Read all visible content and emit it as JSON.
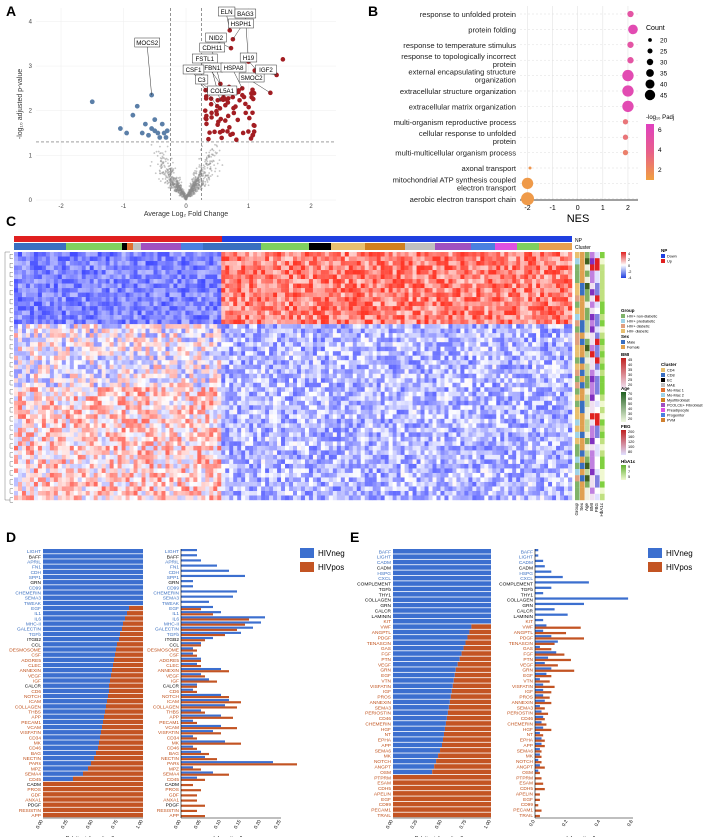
{
  "panels": {
    "A": "A",
    "B": "B",
    "C": "C",
    "D": "D",
    "E": "E"
  },
  "panel_a": {
    "ylabel": "-log₁₀ adjusted p-value",
    "xlabel": "Average Log₂ Fold Change",
    "xticks": [
      "-2",
      "-1",
      "0",
      "1",
      "2"
    ],
    "yticks": [
      "0",
      "1",
      "2",
      "3",
      "4"
    ],
    "gene_labels": [
      "ELN",
      "BAG3",
      "HSPH1",
      "MOCS2",
      "NID2",
      "CDH11",
      "FSTL1",
      "FBN1",
      "HSPA8",
      "H19",
      "CSF1",
      "C3",
      "COL5A1",
      "SMOC2",
      "IGF2"
    ],
    "colors": {
      "up": "#a31d22",
      "down": "#5b7fa8",
      "ns": "#8c8c8c"
    }
  },
  "panel_b": {
    "xlabel": "NES",
    "xticks": [
      "-2",
      "-1",
      "0",
      "1",
      "2"
    ],
    "terms": [
      {
        "label": "response to unfolded protein",
        "nes": 2.1,
        "count": 25,
        "padj": 5.0
      },
      {
        "label": "protein folding",
        "nes": 2.2,
        "count": 35,
        "padj": 5.5
      },
      {
        "label": "response to temperature stimulus",
        "nes": 2.1,
        "count": 25,
        "padj": 5.0
      },
      {
        "label": "response to topologically incorrect protein",
        "nes": 2.1,
        "count": 25,
        "padj": 5.0
      },
      {
        "label": "external encapsulating structure organization",
        "nes": 2.0,
        "count": 40,
        "padj": 5.5
      },
      {
        "label": "extracellular structure organization",
        "nes": 2.0,
        "count": 40,
        "padj": 5.5
      },
      {
        "label": "extracellular matrix organization",
        "nes": 2.0,
        "count": 40,
        "padj": 5.5
      },
      {
        "label": "multi-organism reproductive process",
        "nes": 1.9,
        "count": 22,
        "padj": 3.5
      },
      {
        "label": "cellular response to unfolded protein",
        "nes": 1.9,
        "count": 22,
        "padj": 3.5
      },
      {
        "label": "multi-multicellular organism process",
        "nes": 1.9,
        "count": 22,
        "padj": 3.0
      },
      {
        "label": "axonal transport",
        "nes": -1.9,
        "count": 15,
        "padj": 2.0
      },
      {
        "label": "mitochondrial ATP synthesis coupled electron transport",
        "nes": -2.0,
        "count": 40,
        "padj": 1.8
      },
      {
        "label": "aerobic electron transport chain",
        "nes": -2.0,
        "count": 45,
        "padj": 1.8
      }
    ],
    "legend": {
      "count_title": "Count",
      "counts": [
        "20",
        "25",
        "30",
        "35",
        "40",
        "45"
      ],
      "padj_title": "-log₁₀ Padj",
      "padj_ticks": [
        "6",
        "4",
        "2"
      ]
    }
  },
  "panel_c": {
    "track_labels": {
      "np": "NP",
      "cluster": "Cluster"
    },
    "bottom_labels": [
      "Group",
      "Sex",
      "Age",
      "BMI",
      "FBG",
      "HbA1c"
    ],
    "legends": {
      "np": {
        "title": "NP",
        "items": [
          {
            "label": "Down",
            "color": "#1f3fe0"
          },
          {
            "label": "Up",
            "color": "#e02020"
          }
        ]
      },
      "scale": {
        "title": "",
        "ticks": [
          "4",
          "2",
          "0",
          "-2",
          "-4"
        ]
      },
      "group": {
        "title": "Group",
        "items": [
          {
            "label": "HIV+ non-diabetic",
            "color": "#7fb36b"
          },
          {
            "label": "HIV+ prediabetic",
            "color": "#9fd3e8"
          },
          {
            "label": "HIV+ diabetic",
            "color": "#e0a080"
          },
          {
            "label": "HIV- diabetic",
            "color": "#e8c070"
          }
        ]
      },
      "sex": {
        "title": "Sex",
        "items": [
          {
            "label": "Male",
            "color": "#3a6fc0"
          },
          {
            "label": "Female",
            "color": "#e0a050"
          }
        ]
      },
      "bmi": {
        "title": "BMI",
        "ticks": [
          "45",
          "40",
          "35",
          "30",
          "25",
          "20"
        ]
      },
      "age": {
        "title": "Age",
        "ticks": [
          "70",
          "60",
          "50",
          "40",
          "30",
          "20"
        ]
      },
      "fbg": {
        "title": "FBG",
        "ticks": [
          "200",
          "160",
          "120",
          "100",
          "80"
        ]
      },
      "hba1c": {
        "title": "HbA1c",
        "ticks": [
          "9",
          "7",
          "5"
        ]
      },
      "cluster": {
        "title": "Cluster",
        "items": [
          {
            "label": "CD4",
            "color": "#e8c070"
          },
          {
            "label": "CD8",
            "color": "#3a6fc0"
          },
          {
            "label": "EC",
            "color": "#000000"
          },
          {
            "label": "MAE",
            "color": "#c0c0c0"
          },
          {
            "label": "Mo-Mac 1",
            "color": "#e07030"
          },
          {
            "label": "Mo-Mac 2",
            "color": "#9fd3e8"
          },
          {
            "label": "Myofibroblast",
            "color": "#d08020"
          },
          {
            "label": "PCOLCE+ Fibroblast",
            "color": "#a050c0"
          },
          {
            "label": "Preadipocyte",
            "color": "#e050e0"
          },
          {
            "label": "Progenitor",
            "color": "#4a80e0"
          },
          {
            "label": "PVM",
            "color": "#d08030"
          }
        ]
      }
    }
  },
  "panel_d": {
    "xlabel_left": "Relative information flow",
    "xlabel_right": "Information flow",
    "xticks_left": [
      "0.00",
      "0.25",
      "0.50",
      "0.75",
      "1.00"
    ],
    "xticks_right": [
      "0.00",
      "0.05",
      "0.10",
      "0.15",
      "0.20",
      "0.25"
    ],
    "pathways": [
      "LIGHT",
      "BAFF",
      "APRIL",
      "FN1",
      "CDH",
      "SPP1",
      "GRN",
      "CD99",
      "CHEMERIN",
      "SEMA3",
      "TWEAK",
      "EGF",
      "IL1",
      "IL6",
      "MHC-II",
      "GALECTIN",
      "TGFb",
      "ITGB2",
      "CCL",
      "DESMOSOME",
      "CSF",
      "ADGRE5",
      "CLEC",
      "ANNEXIN",
      "VEGF",
      "IGF",
      "CALCR",
      "CD6",
      "NOTCH",
      "ICAM",
      "COLLAGEN",
      "THBS",
      "APP",
      "PECAM1",
      "VCAM",
      "VISFATIN",
      "CD34",
      "MK",
      "CD46",
      "BAG",
      "NECTIN",
      "PARs",
      "MPZ",
      "SEMA4",
      "CD45",
      "CADM",
      "PROS",
      "GDF",
      "ANXA1",
      "PDGF",
      "RESISTIN",
      "APP"
    ],
    "label_colors": [
      "b",
      "k",
      "b",
      "b",
      "b",
      "b",
      "k",
      "b",
      "b",
      "b",
      "b",
      "b",
      "b",
      "b",
      "b",
      "b",
      "b",
      "k",
      "k",
      "r",
      "r",
      "r",
      "r",
      "r",
      "r",
      "r",
      "k",
      "r",
      "r",
      "r",
      "r",
      "r",
      "r",
      "r",
      "r",
      "r",
      "r",
      "r",
      "r",
      "r",
      "r",
      "r",
      "r",
      "r",
      "r",
      "k",
      "r",
      "r",
      "r",
      "k",
      "r",
      "r"
    ],
    "ratios": [
      1.0,
      1.0,
      1.0,
      1.0,
      1.0,
      1.0,
      1.0,
      1.0,
      1.0,
      1.0,
      1.0,
      0.86,
      0.84,
      0.82,
      0.8,
      0.79,
      0.77,
      0.76,
      0.74,
      0.73,
      0.72,
      0.71,
      0.7,
      0.69,
      0.68,
      0.67,
      0.66,
      0.66,
      0.65,
      0.64,
      0.63,
      0.62,
      0.61,
      0.6,
      0.59,
      0.58,
      0.57,
      0.56,
      0.55,
      0.53,
      0.51,
      0.48,
      0.45,
      0.4,
      0.3,
      0.0,
      0.0,
      0.0,
      0.0,
      0.0,
      0.0,
      0.0
    ],
    "neg_flow": [
      0.04,
      0.04,
      0.05,
      0.09,
      0.12,
      0.16,
      0.03,
      0.03,
      0.14,
      0.13,
      0.07,
      0.08,
      0.1,
      0.21,
      0.2,
      0.18,
      0.15,
      0.08,
      0.05,
      0.03,
      0.03,
      0.05,
      0.04,
      0.1,
      0.05,
      0.07,
      0.04,
      0.03,
      0.1,
      0.12,
      0.11,
      0.05,
      0.1,
      0.03,
      0.1,
      0.08,
      0.03,
      0.11,
      0.03,
      0.05,
      0.06,
      0.23,
      0.03,
      0.08,
      0.04,
      0.0,
      0.0,
      0.0,
      0.0,
      0.0,
      0.0,
      0.0
    ],
    "pos_flow": [
      0.0,
      0.0,
      0.0,
      0.0,
      0.0,
      0.0,
      0.0,
      0.0,
      0.0,
      0.0,
      0.0,
      0.05,
      0.08,
      0.17,
      0.16,
      0.14,
      0.11,
      0.06,
      0.05,
      0.04,
      0.04,
      0.05,
      0.05,
      0.12,
      0.06,
      0.09,
      0.04,
      0.04,
      0.12,
      0.15,
      0.14,
      0.06,
      0.13,
      0.04,
      0.14,
      0.1,
      0.04,
      0.15,
      0.04,
      0.07,
      0.09,
      0.29,
      0.05,
      0.12,
      0.06,
      0.03,
      0.05,
      0.04,
      0.04,
      0.06,
      0.04,
      0.06
    ],
    "legend": {
      "neg": "HIVneg",
      "pos": "HIVpos"
    }
  },
  "panel_e": {
    "xlabel_left": "Relative information flow",
    "xlabel_right": "Information flow",
    "xticks_left": [
      "0.00",
      "0.25",
      "0.50",
      "0.75",
      "1.00"
    ],
    "xticks_right": [
      "0.0",
      "0.2",
      "0.4",
      "0.6"
    ],
    "pathways": [
      "BAFF",
      "LIGHT",
      "CADM",
      "CADM",
      "HSPG",
      "CXCL",
      "COMPLEMENT",
      "TGFb",
      "THY1",
      "COLLAGEN",
      "GRN",
      "CALCR",
      "LAMININ",
      "KIT",
      "VWF",
      "ANGPTL",
      "PDGF",
      "TENASCIN",
      "GAS",
      "FGF",
      "PTN",
      "VEGF",
      "GRN",
      "EGF",
      "VTN",
      "VISFATIN",
      "IGF",
      "PROS",
      "ANNEXIN",
      "SEMA3",
      "PERIOSTIN",
      "CD46",
      "CHEMERIN",
      "HGF",
      "NT",
      "EPHA",
      "APP",
      "SEMA6",
      "MK",
      "NOTCH",
      "ANGPT",
      "OSM",
      "PTPRM",
      "ESAM",
      "CDH5",
      "APELIN",
      "EGF",
      "CD99",
      "PECAM1",
      "TRAIL"
    ],
    "label_colors": [
      "b",
      "b",
      "b",
      "k",
      "b",
      "b",
      "k",
      "k",
      "k",
      "k",
      "k",
      "k",
      "k",
      "r",
      "r",
      "r",
      "r",
      "r",
      "r",
      "r",
      "r",
      "r",
      "r",
      "r",
      "r",
      "r",
      "r",
      "r",
      "r",
      "r",
      "r",
      "r",
      "r",
      "r",
      "r",
      "r",
      "r",
      "r",
      "r",
      "r",
      "r",
      "r",
      "r",
      "r",
      "r",
      "r",
      "r",
      "r",
      "r",
      "r"
    ],
    "ratios": [
      1.0,
      1.0,
      1.0,
      1.0,
      1.0,
      1.0,
      1.0,
      1.0,
      1.0,
      1.0,
      1.0,
      1.0,
      1.0,
      1.0,
      0.8,
      0.78,
      0.76,
      0.74,
      0.72,
      0.7,
      0.68,
      0.66,
      0.64,
      0.63,
      0.62,
      0.61,
      0.6,
      0.59,
      0.58,
      0.57,
      0.56,
      0.55,
      0.54,
      0.53,
      0.52,
      0.51,
      0.5,
      0.48,
      0.46,
      0.44,
      0.42,
      0.4,
      0.0,
      0.0,
      0.0,
      0.0,
      0.0,
      0.0,
      0.0,
      0.0
    ],
    "neg_flow": [
      0.02,
      0.02,
      0.05,
      0.06,
      0.1,
      0.17,
      0.33,
      0.1,
      0.05,
      0.57,
      0.3,
      0.12,
      0.2,
      0.05,
      0.07,
      0.05,
      0.1,
      0.14,
      0.03,
      0.13,
      0.08,
      0.06,
      0.1,
      0.07,
      0.03,
      0.05,
      0.05,
      0.05,
      0.06,
      0.03,
      0.04,
      0.05,
      0.04,
      0.05,
      0.03,
      0.04,
      0.04,
      0.03,
      0.03,
      0.02,
      0.03,
      0.02,
      0.0,
      0.0,
      0.0,
      0.0,
      0.0,
      0.0,
      0.0,
      0.0
    ],
    "pos_flow": [
      0.0,
      0.0,
      0.0,
      0.0,
      0.0,
      0.0,
      0.0,
      0.0,
      0.0,
      0.0,
      0.0,
      0.0,
      0.0,
      0.0,
      0.28,
      0.19,
      0.3,
      0.12,
      0.1,
      0.18,
      0.22,
      0.14,
      0.24,
      0.1,
      0.09,
      0.12,
      0.1,
      0.09,
      0.1,
      0.06,
      0.08,
      0.06,
      0.07,
      0.1,
      0.05,
      0.06,
      0.06,
      0.04,
      0.04,
      0.04,
      0.06,
      0.03,
      0.04,
      0.05,
      0.06,
      0.03,
      0.03,
      0.02,
      0.04,
      0.03
    ],
    "legend": {
      "neg": "HIVneg",
      "pos": "HIVpos"
    }
  }
}
